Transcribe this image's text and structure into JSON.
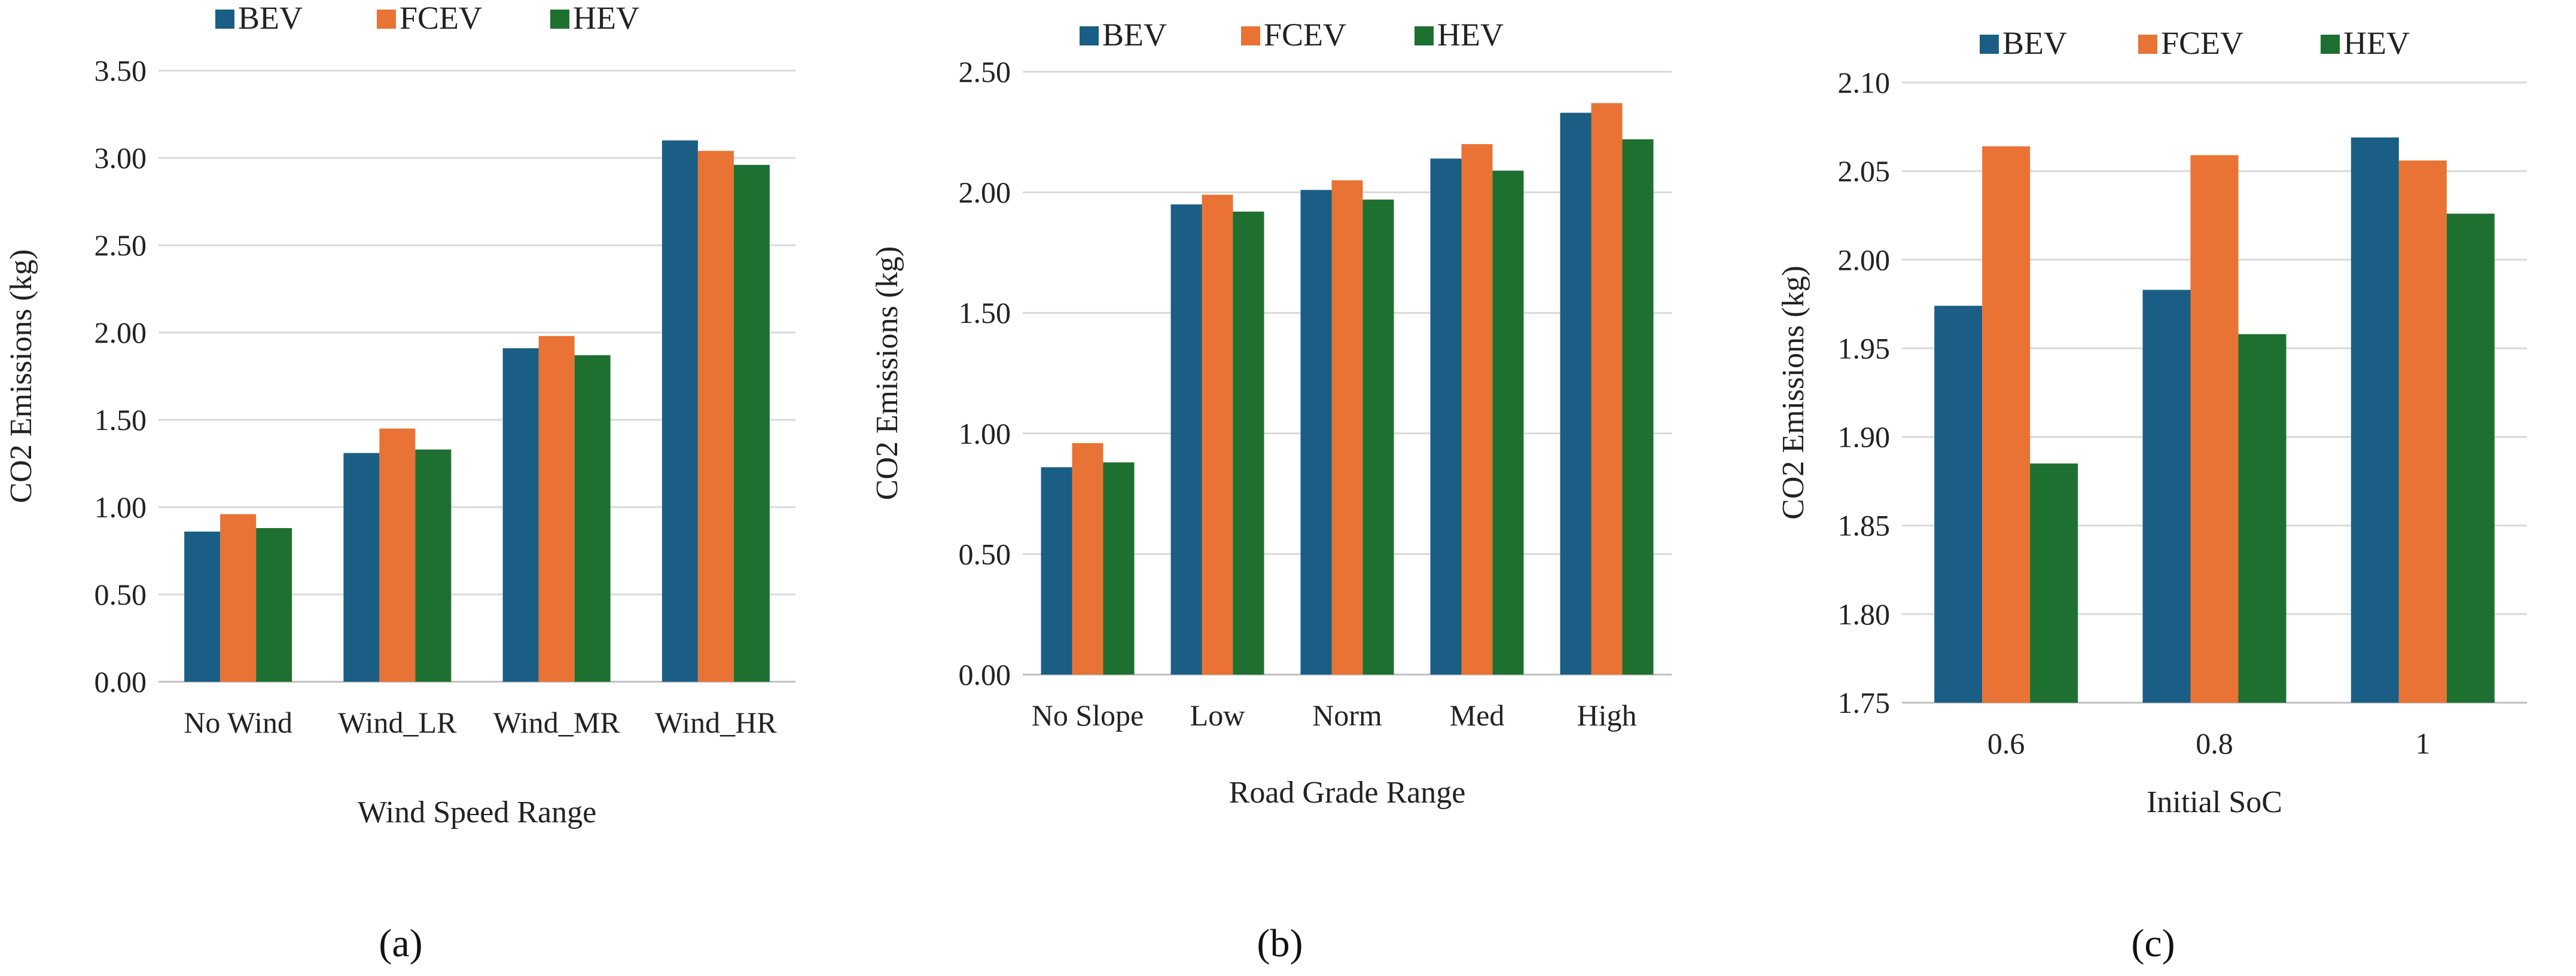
{
  "chart_data": [
    {
      "type": "bar",
      "panel_label": "(a)",
      "title": "",
      "xlabel": "Wind Speed Range",
      "ylabel": "CO2 Emissions (kg)",
      "ylim": [
        0,
        3.5
      ],
      "yticks": [
        "0.00",
        "0.50",
        "1.00",
        "1.50",
        "2.00",
        "2.50",
        "3.00",
        "3.50"
      ],
      "categories": [
        "No Wind",
        "Wind_LR",
        "Wind_MR",
        "Wind_HR"
      ],
      "series": [
        {
          "name": "BEV",
          "color": "#1a5e85",
          "values": [
            0.86,
            1.31,
            1.91,
            3.1
          ]
        },
        {
          "name": "FCEV",
          "color": "#e87334",
          "values": [
            0.96,
            1.45,
            1.98,
            3.04
          ]
        },
        {
          "name": "HEV",
          "color": "#1e7030",
          "values": [
            0.88,
            1.33,
            1.87,
            2.96
          ]
        }
      ],
      "grid": true,
      "legend": "top"
    },
    {
      "type": "bar",
      "panel_label": "(b)",
      "title": "",
      "xlabel": "Road Grade Range",
      "ylabel": "CO2 Emissions (kg)",
      "ylim": [
        0,
        2.5
      ],
      "yticks": [
        "0.00",
        "0.50",
        "1.00",
        "1.50",
        "2.00",
        "2.50"
      ],
      "categories": [
        "No Slope",
        "Low",
        "Norm",
        "Med",
        "High"
      ],
      "series": [
        {
          "name": "BEV",
          "color": "#1a5e85",
          "values": [
            0.86,
            1.95,
            2.01,
            2.14,
            2.33
          ]
        },
        {
          "name": "FCEV",
          "color": "#e87334",
          "values": [
            0.96,
            1.99,
            2.05,
            2.2,
            2.37
          ]
        },
        {
          "name": "HEV",
          "color": "#1e7030",
          "values": [
            0.88,
            1.92,
            1.97,
            2.09,
            2.22
          ]
        }
      ],
      "grid": true,
      "legend": "top"
    },
    {
      "type": "bar",
      "panel_label": "(c)",
      "title": "",
      "xlabel": "Initial SoC",
      "ylabel": "CO2 Emissions (kg)",
      "ylim": [
        1.75,
        2.1
      ],
      "yticks": [
        "1.75",
        "1.80",
        "1.85",
        "1.90",
        "1.95",
        "2.00",
        "2.05",
        "2.10"
      ],
      "categories": [
        "0.6",
        "0.8",
        "1"
      ],
      "series": [
        {
          "name": "BEV",
          "color": "#1a5e85",
          "values": [
            1.974,
            1.983,
            2.069
          ]
        },
        {
          "name": "FCEV",
          "color": "#e87334",
          "values": [
            2.064,
            2.059,
            2.056
          ]
        },
        {
          "name": "HEV",
          "color": "#1e7030",
          "values": [
            1.885,
            1.958,
            2.026
          ]
        }
      ],
      "grid": true,
      "legend": "top"
    }
  ]
}
